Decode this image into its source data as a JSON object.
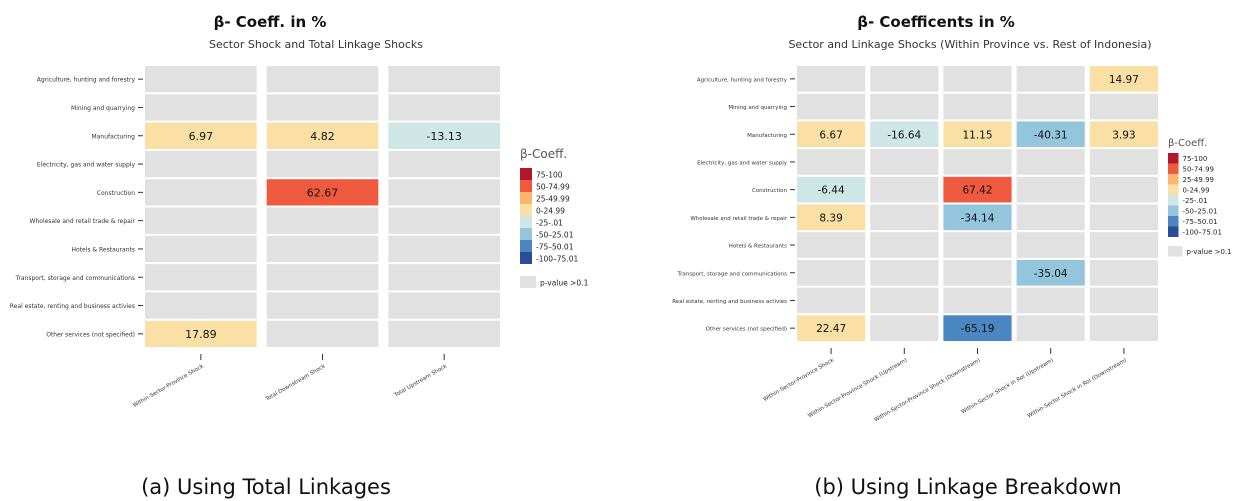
{
  "colors": {
    "b75_100": "#b2182b",
    "b50_75": "#ef5a3f",
    "b25_50": "#fbb56f",
    "b0_25": "#fbe0a5",
    "bn25_0": "#cfe6e6",
    "bn50_25": "#93c5dc",
    "bn75_50": "#4a86c0",
    "bn100_75": "#2b4c9b",
    "insignificant": "#e1e1e1"
  },
  "legend": {
    "title": "β-Coeff.",
    "items": [
      "75-100",
      "50-74.99",
      "25-49.99",
      "0-24.99",
      "-25-.01",
      "-50–25.01",
      "-75–50.01",
      "-100–75.01"
    ],
    "na_label": "p-value >0.1"
  },
  "chart_data": [
    {
      "type": "heatmap",
      "title": "β- Coeff. in %",
      "subtitle": "Sector Shock and Total Linkage Shocks",
      "caption": "(a) Using Total Linkages",
      "rows": [
        "Agriculture, hunting and forestry",
        "Mining and quarrying",
        "Manufacturing",
        "Electricity, gas and water supply",
        "Construction",
        "Wholesale and retail trade & repair",
        "Hotels & Restaurants",
        "Transport, storage and communications",
        "Real estate, renting and business activies",
        "Other services (not specified)"
      ],
      "columns": [
        "Within-Sector-Province Shock",
        "Total Downstream Shock",
        "Total Upstream Shock"
      ],
      "values": [
        [
          null,
          null,
          null
        ],
        [
          null,
          null,
          null
        ],
        [
          6.97,
          4.82,
          -13.13
        ],
        [
          null,
          null,
          null
        ],
        [
          null,
          62.67,
          null
        ],
        [
          null,
          null,
          null
        ],
        [
          null,
          null,
          null
        ],
        [
          null,
          null,
          null
        ],
        [
          null,
          null,
          null
        ],
        [
          17.89,
          null,
          null
        ]
      ],
      "labels": [
        [
          "",
          "",
          ""
        ],
        [
          "",
          "",
          ""
        ],
        [
          "6.97",
          "4.82",
          "-13.13"
        ],
        [
          "",
          "",
          ""
        ],
        [
          "",
          "62.67",
          ""
        ],
        [
          "",
          "",
          ""
        ],
        [
          "",
          "",
          ""
        ],
        [
          "",
          "",
          ""
        ],
        [
          "",
          "",
          ""
        ],
        [
          "17.89",
          "",
          ""
        ]
      ]
    },
    {
      "type": "heatmap",
      "title": "β- Coefficents in %",
      "subtitle": "Sector and Linkage Shocks (Within Province vs. Rest of Indonesia)",
      "caption": "(b) Using Linkage Breakdown",
      "rows": [
        "Agriculture, hunting and forestry",
        "Mining and quarrying",
        "Manufacturing",
        "Electricity, gas and water supply",
        "Construction",
        "Wholesale and retail trade & repair",
        "Hotels & Restaurants",
        "Transport, storage and communications",
        "Real estate, renting and business activies",
        "Other services (not specified)"
      ],
      "columns": [
        "Within-Sector-Province Shock",
        "Within-Sector-Province Shock (Upstream)",
        "Within-Sector-Province Shock (Downstream)",
        "Within-Sector Shock in RoI (Upstream)",
        "Within-Sector Shock in RoI (Downstream)"
      ],
      "values": [
        [
          null,
          null,
          null,
          null,
          14.97
        ],
        [
          null,
          null,
          null,
          null,
          null
        ],
        [
          6.67,
          -16.64,
          11.15,
          -40.31,
          3.93
        ],
        [
          null,
          null,
          null,
          null,
          null
        ],
        [
          -6.44,
          null,
          67.42,
          null,
          null
        ],
        [
          8.39,
          null,
          -34.14,
          null,
          null
        ],
        [
          null,
          null,
          null,
          null,
          null
        ],
        [
          null,
          null,
          null,
          -35.04,
          null
        ],
        [
          null,
          null,
          null,
          null,
          null
        ],
        [
          22.47,
          null,
          -65.19,
          null,
          null
        ]
      ],
      "labels": [
        [
          "",
          "",
          "",
          "",
          "14.97"
        ],
        [
          "",
          "",
          "",
          "",
          ""
        ],
        [
          "6.67",
          "-16.64",
          "11.15",
          "-40.31",
          "3.93"
        ],
        [
          "",
          "",
          "",
          "",
          ""
        ],
        [
          "-6.44",
          "",
          "67.42",
          "",
          ""
        ],
        [
          "8.39",
          "",
          "-34.14",
          "",
          ""
        ],
        [
          "",
          "",
          "",
          "",
          ""
        ],
        [
          "",
          "",
          "",
          "-35.04",
          ""
        ],
        [
          "",
          "",
          "",
          "",
          ""
        ],
        [
          "22.47",
          "",
          "-65.19",
          "",
          ""
        ]
      ]
    }
  ]
}
